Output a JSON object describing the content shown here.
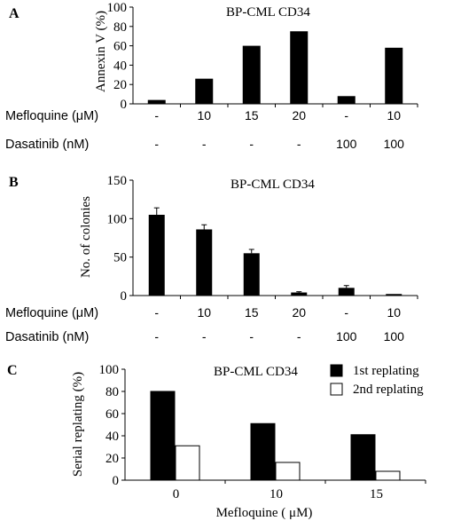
{
  "chart_data": [
    {
      "panel_label": "A",
      "type": "bar",
      "title": "BP-CML CD34",
      "ylabel": "Annexin V (%)",
      "ylim": [
        0,
        100
      ],
      "yticks": [
        "0",
        "20",
        "40",
        "60",
        "80",
        "100"
      ],
      "series": [
        {
          "values": [
            4,
            26,
            60,
            75,
            8,
            58
          ],
          "color": "#000000"
        }
      ],
      "rows": [
        {
          "label": "Mefloquine (μM)",
          "values": [
            "-",
            "10",
            "15",
            "20",
            "-",
            "10"
          ]
        },
        {
          "label": "Dasatinib (nM)",
          "values": [
            "-",
            "-",
            "-",
            "-",
            "100",
            "100"
          ]
        }
      ]
    },
    {
      "panel_label": "B",
      "type": "bar",
      "title": "BP-CML CD34",
      "ylabel": "No. of colonies",
      "ylim": [
        0,
        150
      ],
      "yticks": [
        "0",
        "50",
        "100",
        "150"
      ],
      "series": [
        {
          "values": [
            105,
            86,
            55,
            4,
            10,
            2
          ],
          "errors": [
            9,
            6,
            5,
            1,
            3,
            0
          ],
          "color": "#000000"
        }
      ],
      "rows": [
        {
          "label": "Mefloquine (μM)",
          "values": [
            "-",
            "10",
            "15",
            "20",
            "-",
            "10"
          ]
        },
        {
          "label": "Dasatinib (nM)",
          "values": [
            "-",
            "-",
            "-",
            "-",
            "100",
            "100"
          ]
        }
      ]
    },
    {
      "panel_label": "C",
      "type": "bar",
      "title": "BP-CML CD34",
      "ylabel": "Serial replating (%)",
      "xlabel": "Mefloquine ( μM)",
      "ylim": [
        0,
        100
      ],
      "yticks": [
        "0",
        "20",
        "40",
        "60",
        "80",
        "100"
      ],
      "categories": [
        "0",
        "10",
        "15"
      ],
      "legend_position": "top-right",
      "series": [
        {
          "name": "1st replating",
          "values": [
            80,
            51,
            41
          ],
          "color": "#000000"
        },
        {
          "name": "2nd replating",
          "values": [
            31,
            16,
            8
          ],
          "color": "#ffffff"
        }
      ]
    }
  ]
}
